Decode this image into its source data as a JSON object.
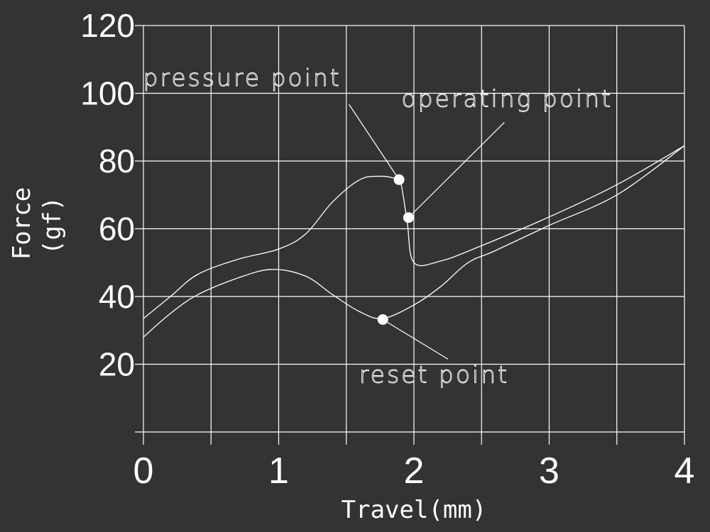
{
  "chart_data": {
    "type": "line",
    "xlabel": "Travel(mm)",
    "ylabel_line1": "Force",
    "ylabel_line2": "(gf)",
    "xlim": [
      0,
      4
    ],
    "ylim": [
      0,
      120
    ],
    "x_ticks": [
      "0",
      "1",
      "2",
      "3",
      "4"
    ],
    "y_ticks": [
      "20",
      "40",
      "60",
      "80",
      "100",
      "120"
    ],
    "grid": true,
    "colors": {
      "background": "#333333",
      "line": "#ffffff",
      "grid": "#ffffff"
    },
    "series": [
      {
        "x": [
          0,
          0.2,
          0.4,
          0.7,
          1.0,
          1.2,
          1.4,
          1.6,
          1.75,
          1.85,
          1.9,
          1.95,
          2.0,
          2.2,
          2.5,
          3.0,
          3.5,
          4.0
        ],
        "y": [
          33.5,
          40,
          46.5,
          51,
          54,
          58.5,
          68,
          74.5,
          75.5,
          75,
          74,
          62,
          50,
          50.5,
          55,
          63.5,
          73,
          84.5
        ]
      },
      {
        "x": [
          0,
          0.2,
          0.4,
          0.7,
          0.95,
          1.2,
          1.4,
          1.6,
          1.77,
          2.0,
          2.2,
          2.4,
          2.6,
          3.0,
          3.5,
          4.0
        ],
        "y": [
          28,
          35,
          40.5,
          45.5,
          48,
          46,
          40.5,
          35.5,
          33.5,
          37.5,
          43,
          50,
          53.5,
          61,
          70,
          84.5
        ]
      }
    ],
    "annotations": [
      {
        "text": "pressure point",
        "x": 1.89,
        "y": 74.5,
        "label_x": 1.52,
        "label_y": 100.5
      },
      {
        "text": "operating point",
        "x": 1.96,
        "y": 63.3,
        "label_x": 1.96,
        "label_y": 93.5
      },
      {
        "text": "reset point",
        "x": 1.77,
        "y": 33.2,
        "label_x": 1.7,
        "label_y": 10
      }
    ]
  }
}
